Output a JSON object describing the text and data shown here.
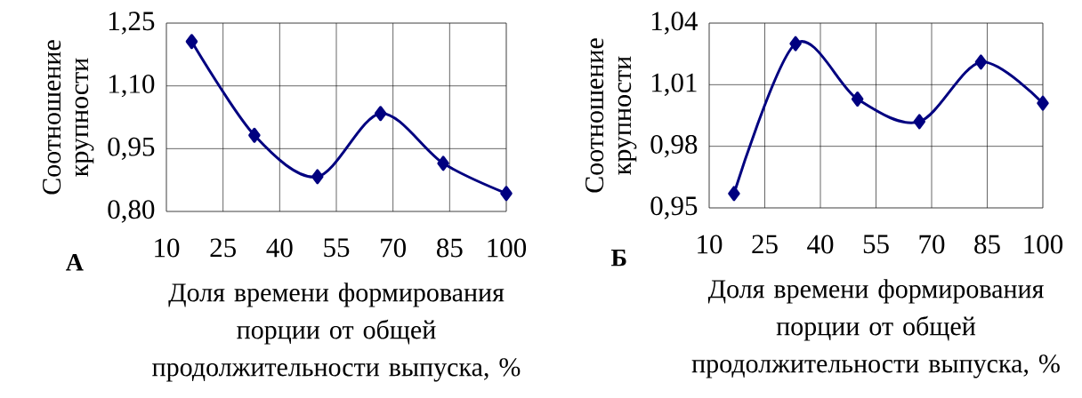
{
  "chart_data": [
    {
      "type": "line",
      "xlabel": "Доля времени формирования порции от общей продолжительности выпуска, %",
      "ylabel": "Соотношение крупности",
      "annotations": [
        "А"
      ],
      "x": [
        16.7,
        33.3,
        50,
        66.7,
        83.3,
        100
      ],
      "values": [
        1.206,
        0.982,
        0.883,
        1.034,
        0.915,
        0.843
      ],
      "color": "#000080",
      "marker": "diamond",
      "grid": true,
      "xlim": [
        10,
        100
      ],
      "xticks": [
        10,
        25,
        40,
        55,
        70,
        85,
        100
      ],
      "ylim": [
        0.8,
        1.25
      ],
      "yticks": [
        {
          "value": 0.8,
          "label": "0,80"
        },
        {
          "value": 0.95,
          "label": "0,95"
        },
        {
          "value": 1.1,
          "label": "1,10"
        },
        {
          "value": 1.25,
          "label": "1,25"
        }
      ]
    },
    {
      "type": "line",
      "xlabel": "Доля времени формирования порции от общей продолжительности выпуска, %",
      "ylabel": "Соотношение крупности",
      "annotations": [
        "Б"
      ],
      "x": [
        16.7,
        33.3,
        50,
        66.7,
        83.3,
        100
      ],
      "values": [
        0.957,
        1.03,
        1.003,
        0.992,
        1.021,
        1.001
      ],
      "color": "#000080",
      "marker": "diamond",
      "grid": true,
      "xlim": [
        10,
        100
      ],
      "xticks": [
        10,
        25,
        40,
        55,
        70,
        85,
        100
      ],
      "ylim": [
        0.95,
        1.04
      ],
      "yticks": [
        {
          "value": 0.95,
          "label": "0,95"
        },
        {
          "value": 0.98,
          "label": "0,98"
        },
        {
          "value": 1.01,
          "label": "1,01"
        },
        {
          "value": 1.04,
          "label": "1,04"
        }
      ]
    }
  ]
}
